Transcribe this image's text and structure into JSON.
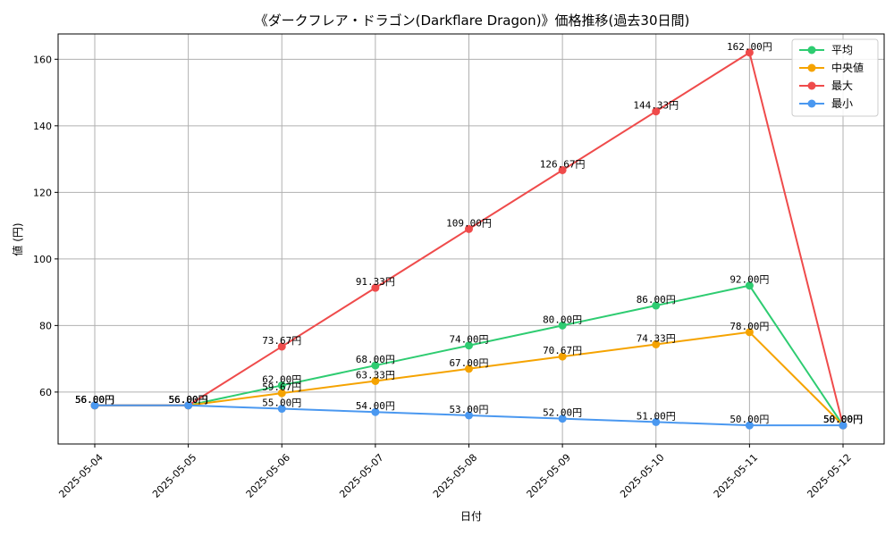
{
  "chart_data": {
    "type": "line",
    "title": "《ダークフレア・ドラゴン(Darkflare Dragon)》価格推移(過去30日間)",
    "xlabel": "日付",
    "ylabel": "値 (円)",
    "value_suffix": "円",
    "categories": [
      "2025-05-04",
      "2025-05-05",
      "2025-05-06",
      "2025-05-07",
      "2025-05-08",
      "2025-05-09",
      "2025-05-10",
      "2025-05-11",
      "2025-05-12"
    ],
    "ylim": [
      44.4,
      167.6
    ],
    "yticks": [
      60,
      80,
      100,
      120,
      140,
      160
    ],
    "grid": true,
    "legend_position": "top-right",
    "series": [
      {
        "name": "平均",
        "color": "#2ecc71",
        "values": [
          56.0,
          56.0,
          62.0,
          68.0,
          74.0,
          80.0,
          86.0,
          92.0,
          50.0
        ]
      },
      {
        "name": "中央値",
        "color": "#f5a300",
        "values": [
          56.0,
          56.0,
          59.67,
          63.33,
          67.0,
          70.67,
          74.33,
          78.0,
          50.0
        ]
      },
      {
        "name": "最大",
        "color": "#ef4b4b",
        "values": [
          56.0,
          56.0,
          73.67,
          91.33,
          109.0,
          126.67,
          144.33,
          162.0,
          50.0
        ]
      },
      {
        "name": "最小",
        "color": "#4a98f0",
        "values": [
          56.0,
          56.0,
          55.0,
          54.0,
          53.0,
          52.0,
          51.0,
          50.0,
          50.0
        ]
      }
    ]
  }
}
